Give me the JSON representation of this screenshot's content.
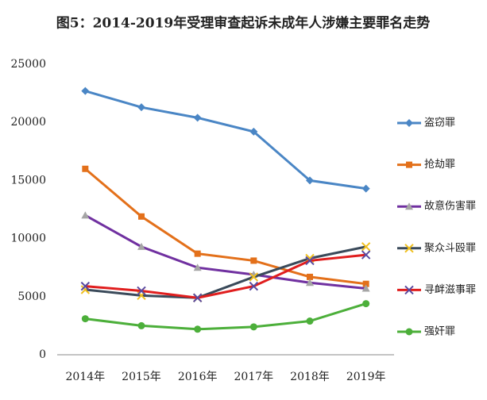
{
  "chart_data": {
    "type": "line",
    "title": "图5：2014-2019年受理审查起诉未成年人涉嫌主要罪名走势",
    "categories": [
      "2014年",
      "2015年",
      "2016年",
      "2017年",
      "2018年",
      "2019年"
    ],
    "ylim": [
      0,
      25000
    ],
    "yticks": [
      0,
      5000,
      10000,
      15000,
      20000,
      25000
    ],
    "grid": false,
    "legend": "right",
    "series": [
      {
        "name": "盗窃罪",
        "color": "#4a86c5",
        "marker": "diamond",
        "marker_color": "#4a86c5",
        "values": [
          22700,
          21300,
          20400,
          19200,
          15000,
          14300
        ]
      },
      {
        "name": "抢劫罪",
        "color": "#e3701a",
        "marker": "square",
        "marker_color": "#e3701a",
        "values": [
          16000,
          11900,
          8700,
          8100,
          6700,
          6100
        ]
      },
      {
        "name": "故意伤害罪",
        "color": "#7030a0",
        "marker": "triangle",
        "marker_color": "#a5a5a5",
        "values": [
          12000,
          9300,
          7500,
          6900,
          6200,
          5700
        ]
      },
      {
        "name": "聚众斗殴罪",
        "color": "#3a4a5a",
        "marker": "x",
        "marker_color": "#f0c020",
        "values": [
          5600,
          5100,
          4900,
          6700,
          8300,
          9300
        ]
      },
      {
        "name": "寻衅滋事罪",
        "color": "#e01e1e",
        "marker": "x",
        "marker_color": "#5a4aa0",
        "values": [
          5900,
          5500,
          4900,
          5900,
          8100,
          8600
        ]
      },
      {
        "name": "强奸罪",
        "color": "#4caf3a",
        "marker": "circle",
        "marker_color": "#4caf3a",
        "values": [
          3100,
          2500,
          2200,
          2400,
          2900,
          4400
        ]
      }
    ]
  }
}
